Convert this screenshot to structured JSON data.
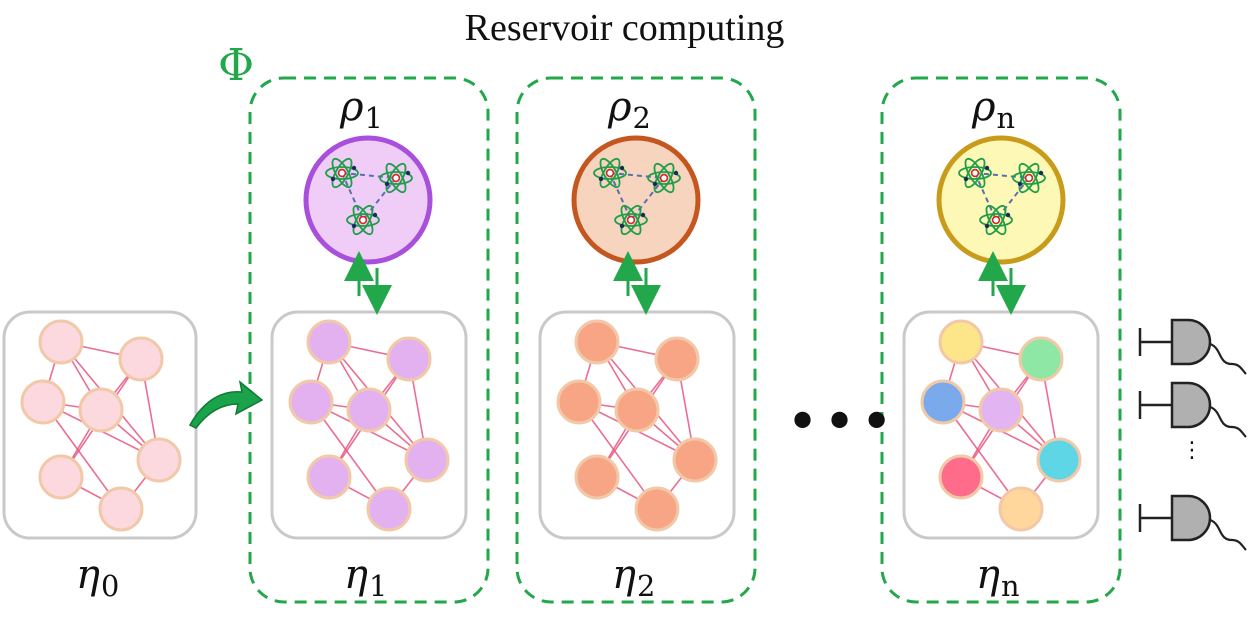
{
  "title": "Reservoir computing",
  "map_symbol": "Φ",
  "ellipsis": "•••",
  "vertical_ellipsis": "⋮",
  "reservoirs": [
    {
      "id": "eta0",
      "label": "η",
      "index": "0",
      "node_color": "#fcd9de"
    },
    {
      "id": "eta1",
      "label": "η",
      "index": "1",
      "node_color": "#e4b1f0",
      "quantum_label": "ρ",
      "quantum_index": "1",
      "quantum_fill": "#f0cdf6",
      "quantum_stroke": "#a84fdc"
    },
    {
      "id": "eta2",
      "label": "η",
      "index": "2",
      "node_color": "#f7a585",
      "quantum_label": "ρ",
      "quantum_index": "2",
      "quantum_fill": "#f7d4bd",
      "quantum_stroke": "#c4561f"
    },
    {
      "id": "etan",
      "label": "η",
      "index": "n",
      "node_colors": [
        "#fde58a",
        "#8fe7a5",
        "#7aa9ec",
        "#e2b4f1",
        "#5fd6e6",
        "#ff6b8b",
        "#ffd79c"
      ],
      "quantum_label": "ρ",
      "quantum_index": "n",
      "quantum_fill": "#fdf8b5",
      "quantum_stroke": "#c89c1a"
    }
  ],
  "colors": {
    "accent_green": "#22a84a",
    "edge_pink": "#e8557f",
    "box_border": "#c9c9c9",
    "detector_gray": "#b0b0b0"
  },
  "detectors_count": 3
}
